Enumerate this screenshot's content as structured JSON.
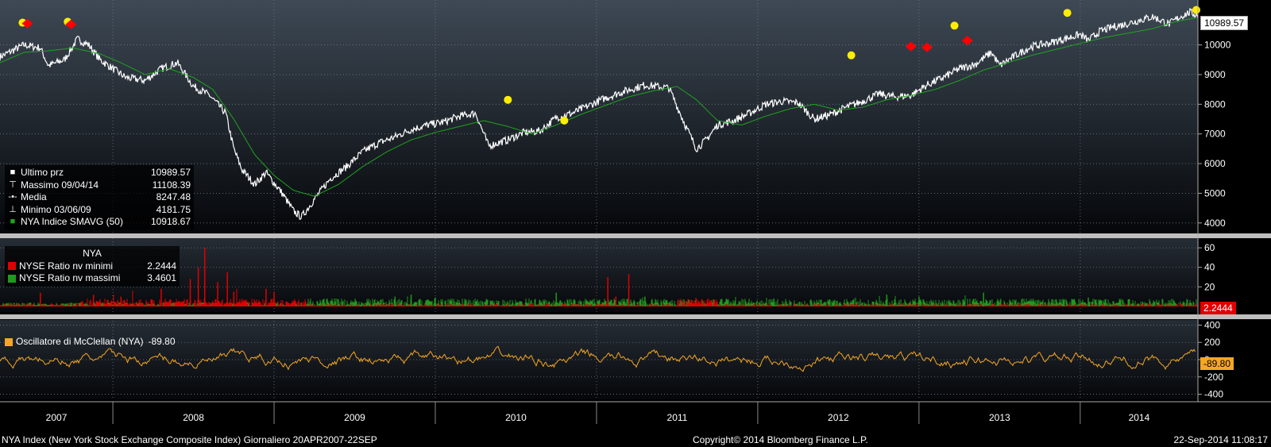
{
  "colors": {
    "price": "#ffffff",
    "sma": "#1fa31f",
    "ratio_lows": "#e00000",
    "ratio_highs": "#1f9a1f",
    "mcclellan": "#f5a623",
    "marker_yellow": "#ffee00",
    "marker_red": "#ff0000",
    "grid": "#6d7a86",
    "separator": "#bfbfbf"
  },
  "legend_price": {
    "rows": [
      {
        "icon": "white-square-icon",
        "label": "Ultimo prz",
        "value": "10989.57"
      },
      {
        "icon": "high-marker-icon",
        "label": "Massimo 09/04/14",
        "value": "11108.39"
      },
      {
        "icon": "average-line-icon",
        "label": "Media",
        "value": "8247.48"
      },
      {
        "icon": "low-marker-icon",
        "label": "Minimo 03/06/09",
        "value": "4181.75"
      },
      {
        "icon": "green-square-icon",
        "label": "NYA Indice SMAVG (50)",
        "value": "10918.67"
      }
    ]
  },
  "legend_ratio": {
    "title": "NYA",
    "rows": [
      {
        "label": "NYSE Ratio nv minimi",
        "value": "2.2444"
      },
      {
        "label": "NYSE Ratio nv massimi",
        "value": "3.4601"
      }
    ]
  },
  "legend_mcclellan": {
    "label": "Oscillatore di McClellan (NYA)",
    "value": "-89.80"
  },
  "last_values": {
    "price": "10989.57",
    "ratio": "2.2444",
    "mcclellan": "-89.80"
  },
  "footer": {
    "left": "NYA Index (New York Stock Exchange Composite Index)  Giornaliero 20APR2007-22SEP",
    "center": "Copyright© 2014 Bloomberg Finance L.P.",
    "right": "22-Sep-2014 11:08:17"
  },
  "chart_data": [
    {
      "type": "line",
      "panel": "price",
      "grid": true,
      "x_axis": {
        "labels": [
          "2007",
          "2008",
          "2009",
          "2010",
          "2011",
          "2012",
          "2013",
          "2014"
        ],
        "range": [
          2007.3,
          2014.73
        ]
      },
      "yticks": [
        4000,
        5000,
        6000,
        7000,
        8000,
        9000,
        10000,
        10989.57
      ],
      "ylim": [
        3700,
        11300
      ],
      "series": [
        {
          "name": "Ultimo prz",
          "color": "#ffffff",
          "x": [
            2007.3,
            2007.45,
            2007.55,
            2007.6,
            2007.7,
            2007.78,
            2007.85,
            2007.92,
            2008.0,
            2008.08,
            2008.2,
            2008.3,
            2008.4,
            2008.5,
            2008.6,
            2008.7,
            2008.75,
            2008.8,
            2008.88,
            2008.95,
            2009.05,
            2009.12,
            2009.17,
            2009.25,
            2009.35,
            2009.45,
            2009.55,
            2009.65,
            2009.75,
            2009.85,
            2009.95,
            2010.05,
            2010.15,
            2010.25,
            2010.33,
            2010.45,
            2010.55,
            2010.65,
            2010.75,
            2010.85,
            2010.95,
            2011.05,
            2011.15,
            2011.3,
            2011.45,
            2011.55,
            2011.62,
            2011.68,
            2011.75,
            2011.85,
            2011.95,
            2012.05,
            2012.15,
            2012.25,
            2012.35,
            2012.45,
            2012.55,
            2012.65,
            2012.75,
            2012.85,
            2012.95,
            2013.05,
            2013.15,
            2013.25,
            2013.35,
            2013.45,
            2013.5,
            2013.6,
            2013.7,
            2013.8,
            2013.9,
            2014.0,
            2014.05,
            2014.12,
            2014.2,
            2014.28,
            2014.38,
            2014.45,
            2014.55,
            2014.62,
            2014.68,
            2014.73
          ],
          "y": [
            9600,
            10000,
            9900,
            9300,
            9500,
            10200,
            10000,
            9500,
            9200,
            8900,
            8800,
            9200,
            9400,
            8600,
            8300,
            7700,
            6500,
            5800,
            5300,
            5700,
            5000,
            4400,
            4200,
            4800,
            5500,
            5900,
            6400,
            6700,
            6900,
            7150,
            7300,
            7400,
            7600,
            7700,
            6600,
            6800,
            7050,
            7100,
            7550,
            7700,
            7950,
            8200,
            8400,
            8650,
            8550,
            7300,
            6500,
            6800,
            7300,
            7450,
            7700,
            8000,
            8100,
            8050,
            7500,
            7650,
            7900,
            8100,
            8350,
            8250,
            8300,
            8650,
            8900,
            9200,
            9350,
            9750,
            9300,
            9650,
            9950,
            10050,
            10200,
            10350,
            10150,
            10450,
            10600,
            10700,
            10850,
            10950,
            10700,
            10950,
            11100,
            10989.57
          ]
        },
        {
          "name": "NYA Indice SMAVG (50)",
          "color": "#1fa31f",
          "x": [
            2007.3,
            2007.45,
            2007.6,
            2007.75,
            2007.92,
            2008.05,
            2008.2,
            2008.35,
            2008.5,
            2008.62,
            2008.75,
            2008.88,
            2009.0,
            2009.12,
            2009.25,
            2009.4,
            2009.55,
            2009.7,
            2009.85,
            2010.0,
            2010.15,
            2010.3,
            2010.45,
            2010.6,
            2010.75,
            2010.9,
            2011.05,
            2011.2,
            2011.35,
            2011.5,
            2011.62,
            2011.75,
            2011.9,
            2012.05,
            2012.2,
            2012.35,
            2012.5,
            2012.65,
            2012.8,
            2012.95,
            2013.1,
            2013.25,
            2013.4,
            2013.55,
            2013.7,
            2013.85,
            2014.0,
            2014.15,
            2014.3,
            2014.45,
            2014.6,
            2014.73
          ],
          "y": [
            9400,
            9750,
            9800,
            9900,
            9700,
            9400,
            9000,
            9200,
            8900,
            8500,
            7500,
            6300,
            5600,
            5100,
            4900,
            5300,
            5900,
            6400,
            6800,
            7050,
            7250,
            7450,
            7250,
            7000,
            7300,
            7650,
            7950,
            8250,
            8450,
            8600,
            8150,
            7450,
            7300,
            7600,
            7850,
            8000,
            7800,
            7900,
            8150,
            8300,
            8500,
            8800,
            9150,
            9400,
            9650,
            9850,
            10050,
            10250,
            10400,
            10550,
            10800,
            10918.67
          ]
        }
      ],
      "markers": {
        "yellow": [
          {
            "x": 2007.44,
            "y": 10750
          },
          {
            "x": 2007.72,
            "y": 10780
          },
          {
            "x": 2010.45,
            "y": 8150
          },
          {
            "x": 2010.8,
            "y": 7450
          },
          {
            "x": 2012.58,
            "y": 9650
          },
          {
            "x": 2013.22,
            "y": 10650
          },
          {
            "x": 2013.92,
            "y": 11080
          },
          {
            "x": 2014.72,
            "y": 11180
          }
        ],
        "red": [
          {
            "x": 2007.47,
            "y": 10720
          },
          {
            "x": 2007.74,
            "y": 10690
          },
          {
            "x": 2012.95,
            "y": 9950
          },
          {
            "x": 2013.05,
            "y": 9920
          },
          {
            "x": 2013.3,
            "y": 10150
          }
        ]
      }
    },
    {
      "type": "bar",
      "panel": "ratio",
      "grid": true,
      "yticks": [
        20,
        40,
        60
      ],
      "ylim": [
        -5,
        65
      ],
      "series": [
        {
          "name": "NYSE Ratio nv minimi",
          "color": "#e00000"
        },
        {
          "name": "NYSE Ratio nv massimi",
          "color": "#1f9a1f"
        }
      ],
      "spikes": [
        {
          "series": "NYSE Ratio nv minimi",
          "x": [
            2007.55,
            2007.88,
            2008.05,
            2008.3,
            2008.48,
            2008.53,
            2008.57,
            2008.65,
            2008.71,
            2008.75,
            2008.95,
            2009.0,
            2011.07,
            2011.12,
            2011.2
          ],
          "y": [
            14,
            12,
            10,
            18,
            28,
            40,
            60,
            25,
            35,
            15,
            18,
            15,
            30,
            10,
            33
          ]
        },
        {
          "series": "NYSE Ratio nv massimi",
          "x": [
            2009.75,
            2009.85,
            2010.0,
            2010.75,
            2011.3,
            2012.1,
            2012.8,
            2013.0,
            2013.4,
            2014.05
          ],
          "y": [
            10,
            12,
            9,
            14,
            10,
            8,
            12,
            10,
            14,
            9
          ]
        }
      ]
    },
    {
      "type": "line",
      "panel": "mcclellan",
      "grid": true,
      "yticks": [
        -400,
        -200,
        0,
        200,
        400
      ],
      "ylim": [
        -450,
        450
      ],
      "series": [
        {
          "name": "Oscillatore di McClellan (NYA)",
          "color": "#f5a623"
        }
      ]
    }
  ]
}
